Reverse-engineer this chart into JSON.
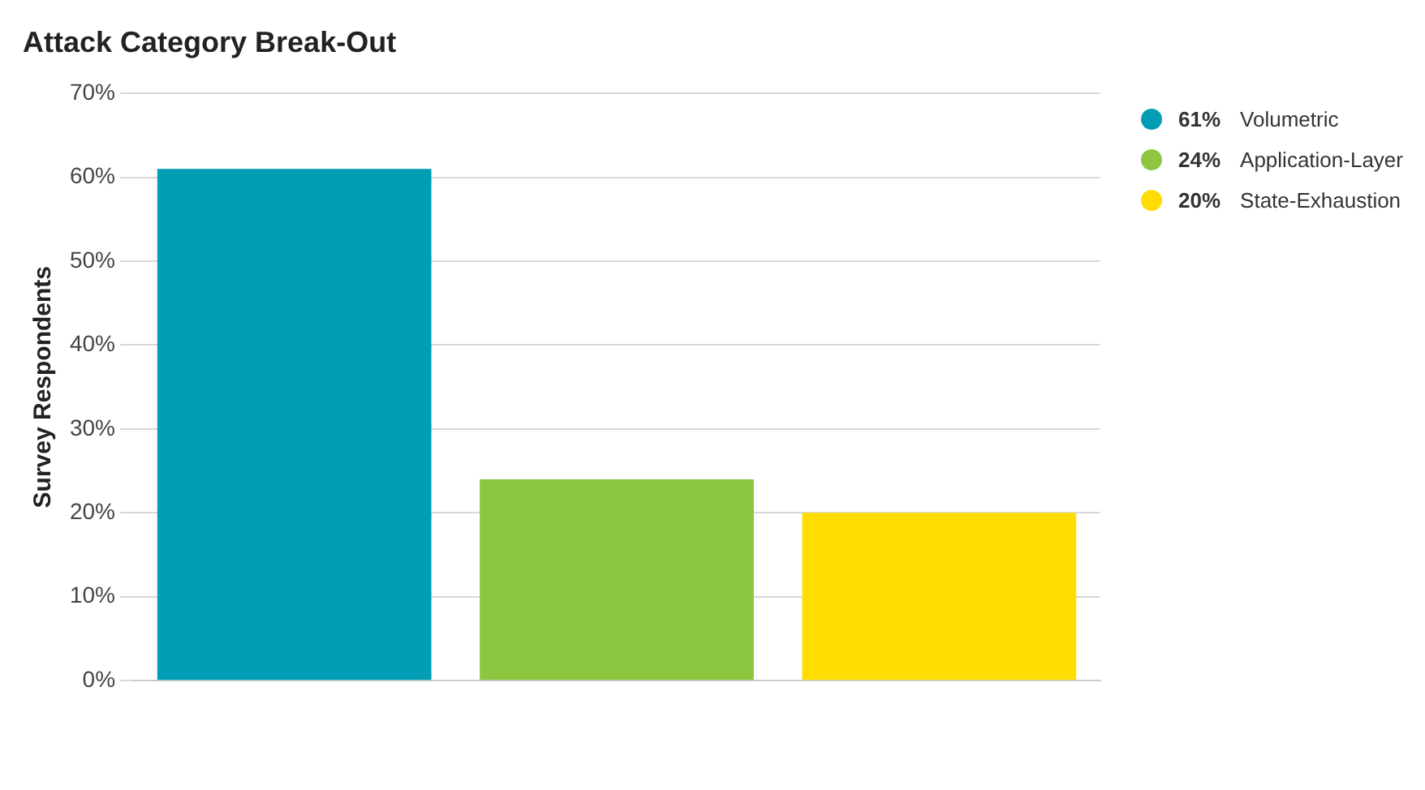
{
  "chart_data": {
    "type": "bar",
    "title": "Attack Category Break-Out",
    "ylabel": "Survey Respondents",
    "categories": [
      null,
      null,
      null
    ],
    "series": [
      {
        "name": "Volumetric",
        "color": "#009db5",
        "values": [
          61,
          null,
          null
        ]
      },
      {
        "name": "Application-Layer",
        "color": "#8dc63f",
        "values": [
          null,
          24,
          null
        ]
      },
      {
        "name": "State-Exhaustion",
        "color": "#ffdd00",
        "values": [
          null,
          null,
          20
        ]
      }
    ],
    "annotations": [
      "61%",
      "24%",
      "20%"
    ],
    "ylim": [
      0,
      70
    ],
    "yticks": [
      {
        "value": 0,
        "label": "0%"
      },
      {
        "value": 10,
        "label": "10%"
      },
      {
        "value": 20,
        "label": "20%"
      },
      {
        "value": 30,
        "label": "30%"
      },
      {
        "value": 40,
        "label": "40%"
      },
      {
        "value": 50,
        "label": "50%"
      },
      {
        "value": 60,
        "label": "60%"
      },
      {
        "value": 70,
        "label": "70%"
      }
    ],
    "grid": "y",
    "legend": "top right"
  }
}
